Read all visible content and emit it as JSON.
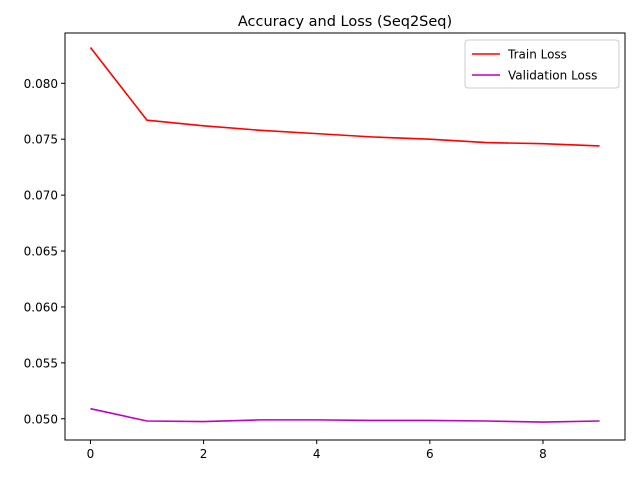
{
  "chart_data": {
    "type": "line",
    "title": "Accuracy and Loss (Seq2Seq)",
    "xlabel": "",
    "ylabel": "",
    "x": [
      0,
      1,
      2,
      3,
      4,
      5,
      6,
      7,
      8,
      9
    ],
    "xlim": [
      -0.45,
      9.45
    ],
    "ylim": [
      0.0481,
      0.0845
    ],
    "xticks": [
      0,
      2,
      4,
      6,
      8
    ],
    "xtick_labels": [
      "0",
      "2",
      "4",
      "6",
      "8"
    ],
    "yticks": [
      0.05,
      0.055,
      0.06,
      0.065,
      0.07,
      0.075,
      0.08
    ],
    "ytick_labels": [
      "0.050",
      "0.055",
      "0.060",
      "0.065",
      "0.070",
      "0.075",
      "0.080"
    ],
    "grid": false,
    "legend_position": "top-right",
    "series": [
      {
        "name": "Train Loss",
        "color": "#ff0000",
        "values": [
          0.0832,
          0.0767,
          0.0762,
          0.0758,
          0.0755,
          0.0752,
          0.075,
          0.0747,
          0.0746,
          0.0744
        ]
      },
      {
        "name": "Validation Loss",
        "color": "#bf00bf",
        "values": [
          0.0509,
          0.0498,
          0.04975,
          0.0499,
          0.0499,
          0.04985,
          0.04985,
          0.0498,
          0.0497,
          0.0498
        ]
      }
    ]
  }
}
